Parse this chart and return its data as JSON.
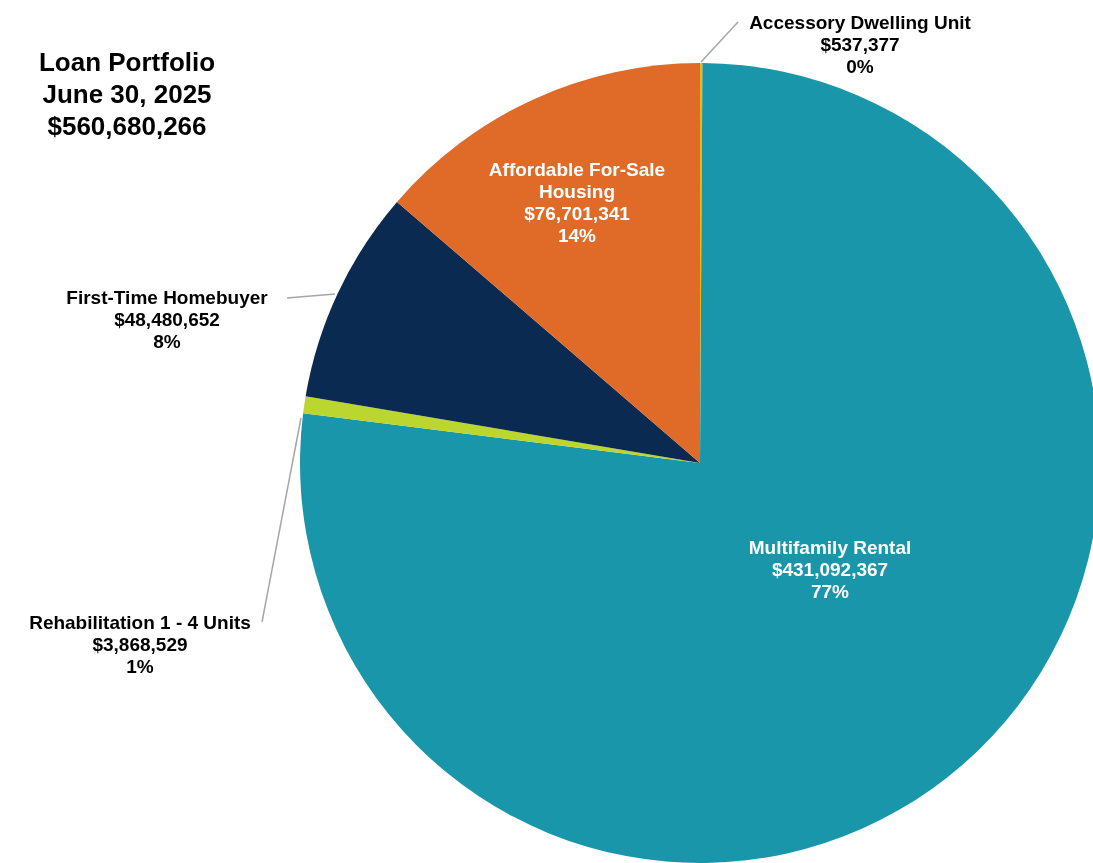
{
  "chart_data": {
    "type": "pie",
    "title": "Loan Portfolio\nJune 30, 2025\n$560,680,266",
    "categories": [
      "Accessory Dwelling Unit",
      "Multifamily Rental",
      "Rehabilitation 1 - 4 Units",
      "First-Time Homebuyer",
      "Affordable For-Sale Housing"
    ],
    "values": [
      537377,
      431092367,
      3868529,
      48480652,
      76701341
    ],
    "colors": [
      "#f2b705",
      "#1a96ab",
      "#bcd630",
      "#0a2a52",
      "#e06b29"
    ],
    "value_labels": [
      "$537,377\n0%",
      "$431,092,367\n77%",
      "$3,868,529\n1%",
      "$48,480,652\n8%",
      "$76,701,341\n14%"
    ]
  }
}
